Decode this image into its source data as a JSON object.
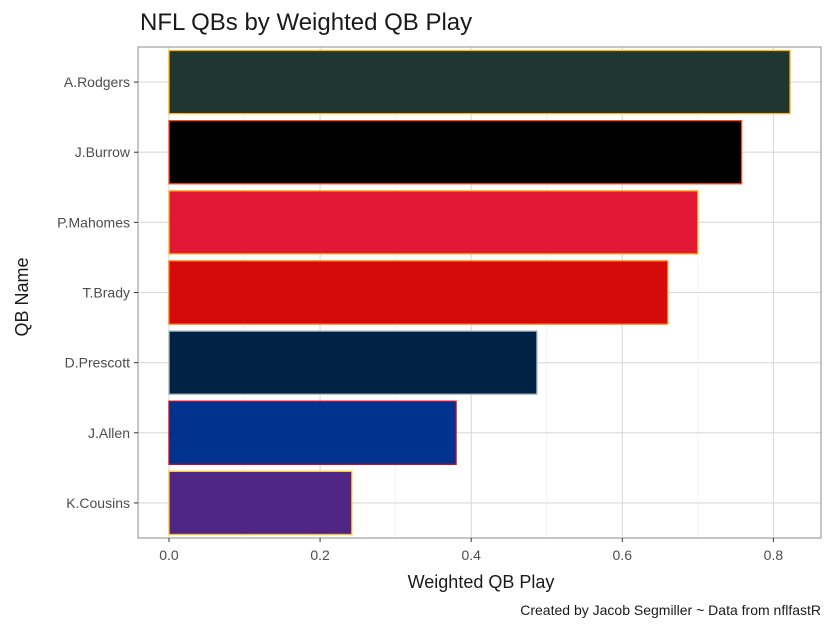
{
  "chart_data": {
    "type": "bar",
    "orientation": "horizontal",
    "title": "NFL QBs by Weighted QB Play",
    "xlabel": "Weighted QB Play",
    "ylabel": "QB Name",
    "caption": "Created by Jacob Segmiller ~ Data from nflfastR",
    "categories": [
      "A.Rodgers",
      "J.Burrow",
      "P.Mahomes",
      "T.Brady",
      "D.Prescott",
      "J.Allen",
      "K.Cousins"
    ],
    "values": [
      0.822,
      0.758,
      0.7,
      0.66,
      0.487,
      0.38,
      0.242
    ],
    "fill_colors": [
      "#203731",
      "#000000",
      "#E31837",
      "#D50A0A",
      "#002244",
      "#00338D",
      "#4F2683"
    ],
    "outline_colors": [
      "#FFB612",
      "#FB4F14",
      "#FFB81C",
      "#FF7900",
      "#B0B7BC",
      "#C60C30",
      "#FFC62F"
    ],
    "xlim": [
      -0.041,
      0.863
    ],
    "xticks": [
      0.0,
      0.2,
      0.4,
      0.6,
      0.8
    ],
    "xtick_labels": [
      "0.0",
      "0.2",
      "0.4",
      "0.6",
      "0.8"
    ],
    "grid": true,
    "legend": "none"
  }
}
